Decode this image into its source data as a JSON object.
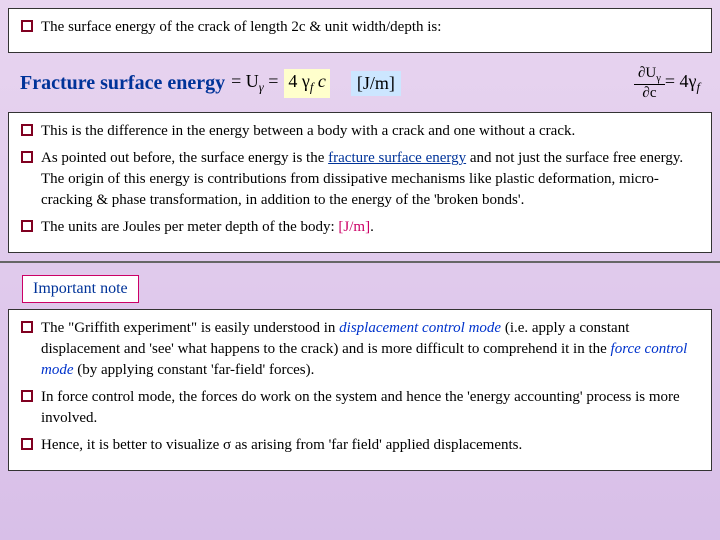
{
  "intro": {
    "text": "The surface energy of the crack of length 2c & unit width/depth is:"
  },
  "formula": {
    "label": "Fracture surface energy",
    "eq1": "= U",
    "sub1": "γ",
    "eq2": " = ",
    "expr": "4 γ",
    "sub2": "f",
    "expr2": " c",
    "units": "[J/m]",
    "deriv_top": "∂U",
    "deriv_topsub": "γ",
    "deriv_bot": "∂c",
    "deriv_eq": " = 4γ",
    "deriv_sub": "f"
  },
  "points": {
    "p1": "This is the difference in the energy between a body with a crack and one without a crack.",
    "p2a": "As pointed out before, the surface energy is the ",
    "p2b": "fracture surface energy",
    "p2c": " and not just the surface free energy. The origin of this energy is contributions from dissipative mechanisms like plastic deformation, micro-cracking & phase transformation, in addition to the energy of the 'broken bonds'.",
    "p3a": "The units are Joules per meter depth of the body: ",
    "p3b": "[J/m]",
    "p3c": "."
  },
  "note": {
    "label": "Important note",
    "n1a": "The \"Griffith experiment\" is easily understood in ",
    "n1b": "displacement control mode",
    "n1c": " (i.e. apply a constant displacement and 'see' what happens to the crack) and is more difficult to comprehend it in the ",
    "n1d": "force control mode",
    "n1e": " (by applying constant 'far-field' forces).",
    "n2": "In force control mode, the forces do work on the system and hence the 'energy accounting' process is more involved.",
    "n3a": "Hence, it is better to visualize σ as arising from 'far field' applied displacements."
  }
}
